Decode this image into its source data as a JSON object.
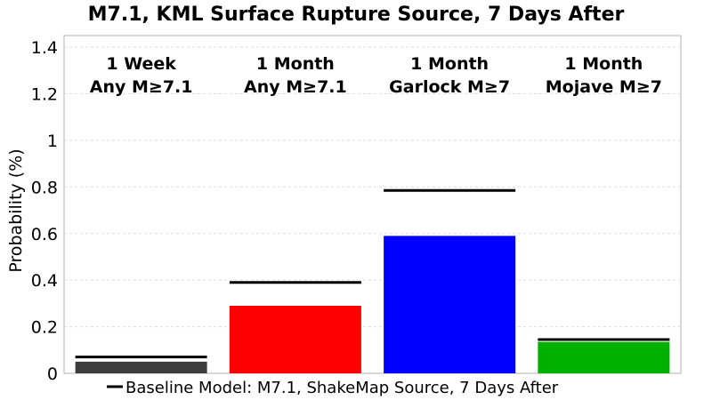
{
  "chart_data": {
    "type": "bar",
    "title": "M7.1, KML Surface Rupture Source, 7 Days After",
    "ylabel": "Probability (%)",
    "xlabel": "",
    "ylim": [
      0,
      1.45
    ],
    "yticks": [
      0,
      0.2,
      0.4,
      0.6,
      0.8,
      1,
      1.2,
      1.4
    ],
    "ytick_labels": [
      "0",
      "0.2",
      "0.4",
      "0.6",
      "0.8",
      "1",
      "1.2",
      "1.4"
    ],
    "grid": true,
    "legend_position": "bottom",
    "categories": [
      {
        "line1": "1 Week",
        "line2": "Any M≥7.1"
      },
      {
        "line1": "1 Month",
        "line2": "Any M≥7.1"
      },
      {
        "line1": "1 Month",
        "line2": "Garlock M≥7"
      },
      {
        "line1": "1 Month",
        "line2": "Mojave M≥7"
      }
    ],
    "series": [
      {
        "values": [
          0.05,
          0.29,
          0.59,
          0.135
        ],
        "colors": [
          "#3d3d3d",
          "#ff0000",
          "#0000ff",
          "#00b000"
        ]
      },
      {
        "name": "Baseline Model: M7.1, ShakeMap Source, 7 Days After",
        "values": [
          0.07,
          0.39,
          0.785,
          0.145
        ],
        "color": "#000000"
      }
    ]
  }
}
